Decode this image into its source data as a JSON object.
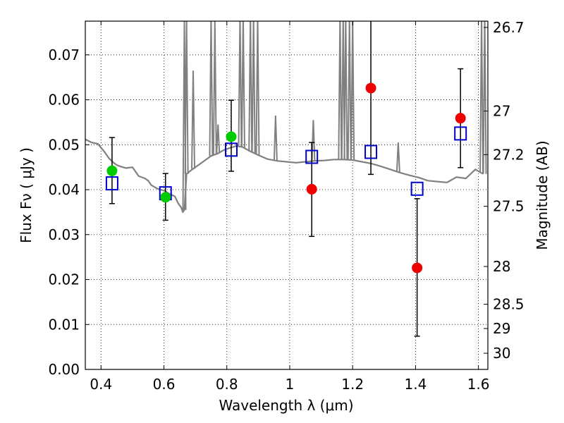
{
  "chart_data": {
    "type": "scatter",
    "title": "",
    "xlabel": "Wavelength  λ (μm)",
    "ylabel": "Flux  Fν  ( μJy )",
    "y2label": "Magnitude (AB)",
    "xlim": [
      0.35,
      1.63
    ],
    "ylim": [
      0.0,
      0.0775
    ],
    "grid": true,
    "x_ticks": [
      {
        "value": 0.4,
        "label": "0.4"
      },
      {
        "value": 0.6,
        "label": "0.6"
      },
      {
        "value": 0.8,
        "label": "0.8"
      },
      {
        "value": 1.0,
        "label": "1"
      },
      {
        "value": 1.2,
        "label": "1.2"
      },
      {
        "value": 1.4,
        "label": "1.4"
      },
      {
        "value": 1.6,
        "label": "1.6"
      }
    ],
    "y_ticks": [
      {
        "value": 0.0,
        "label": "0.00"
      },
      {
        "value": 0.01,
        "label": "0.01"
      },
      {
        "value": 0.02,
        "label": "0.02"
      },
      {
        "value": 0.03,
        "label": "0.03"
      },
      {
        "value": 0.04,
        "label": "0.04"
      },
      {
        "value": 0.05,
        "label": "0.05"
      },
      {
        "value": 0.06,
        "label": "0.06"
      },
      {
        "value": 0.07,
        "label": "0.07"
      }
    ],
    "y2_ticks": [
      {
        "flux": 0.0761,
        "label": "26.7"
      },
      {
        "flux": 0.0575,
        "label": "27"
      },
      {
        "flux": 0.0478,
        "label": "27.2"
      },
      {
        "flux": 0.0363,
        "label": "27.5"
      },
      {
        "flux": 0.0229,
        "label": "28"
      },
      {
        "flux": 0.0145,
        "label": "28.5"
      },
      {
        "flux": 0.0091,
        "label": "29"
      },
      {
        "flux": 0.0036,
        "label": "30"
      }
    ],
    "model_spectrum": {
      "color": "#808080",
      "x": [
        0.35,
        0.37,
        0.39,
        0.41,
        0.425,
        0.44,
        0.45,
        0.46,
        0.48,
        0.5,
        0.52,
        0.54,
        0.55,
        0.56,
        0.58,
        0.6,
        0.62,
        0.635,
        0.645,
        0.655,
        0.66,
        0.665,
        0.672,
        0.69,
        0.71,
        0.73,
        0.75,
        0.77,
        0.79,
        0.81,
        0.83,
        0.85,
        0.87,
        0.9,
        0.93,
        0.96,
        0.99,
        1.02,
        1.05,
        1.08,
        1.11,
        1.14,
        1.17,
        1.2,
        1.23,
        1.26,
        1.29,
        1.32,
        1.35,
        1.38,
        1.41,
        1.44,
        1.47,
        1.5,
        1.53,
        1.56,
        1.59,
        1.615
      ],
      "y": [
        0.0512,
        0.0505,
        0.0502,
        0.0485,
        0.047,
        0.046,
        0.0455,
        0.0452,
        0.0448,
        0.045,
        0.043,
        0.0425,
        0.042,
        0.041,
        0.0402,
        0.0398,
        0.039,
        0.0385,
        0.037,
        0.036,
        0.035,
        0.0355,
        0.0435,
        0.0445,
        0.0455,
        0.0465,
        0.0475,
        0.048,
        0.0488,
        0.0493,
        0.0497,
        0.0495,
        0.0487,
        0.0477,
        0.0468,
        0.0464,
        0.0462,
        0.046,
        0.0462,
        0.0464,
        0.0465,
        0.0467,
        0.0467,
        0.0466,
        0.0462,
        0.0458,
        0.0452,
        0.0445,
        0.0438,
        0.0432,
        0.0427,
        0.042,
        0.0418,
        0.0416,
        0.0428,
        0.0425,
        0.0445,
        0.0435
      ]
    },
    "spikes": [
      {
        "x": 0.665,
        "peak": 0.0775
      },
      {
        "x": 0.672,
        "peak": 0.0775
      },
      {
        "x": 0.693,
        "peak": 0.0665
      },
      {
        "x": 0.75,
        "peak": 0.0785
      },
      {
        "x": 0.762,
        "peak": 0.0775
      },
      {
        "x": 0.772,
        "peak": 0.0545
      },
      {
        "x": 0.842,
        "peak": 0.0785
      },
      {
        "x": 0.852,
        "peak": 0.0785
      },
      {
        "x": 0.875,
        "peak": 0.0785
      },
      {
        "x": 0.885,
        "peak": 0.0785
      },
      {
        "x": 0.898,
        "peak": 0.0785
      },
      {
        "x": 0.955,
        "peak": 0.0565
      },
      {
        "x": 1.075,
        "peak": 0.0555
      },
      {
        "x": 1.16,
        "peak": 0.0785
      },
      {
        "x": 1.17,
        "peak": 0.0785
      },
      {
        "x": 1.178,
        "peak": 0.0785
      },
      {
        "x": 1.19,
        "peak": 0.0785
      },
      {
        "x": 1.2,
        "peak": 0.0785
      },
      {
        "x": 1.345,
        "peak": 0.0505
      },
      {
        "x": 1.61,
        "peak": 0.0785
      },
      {
        "x": 1.62,
        "peak": 0.0785
      }
    ],
    "series": [
      {
        "marker": "square",
        "color": "#0000cc",
        "points": [
          {
            "x": 0.435,
            "y": 0.0414
          },
          {
            "x": 0.605,
            "y": 0.0392
          },
          {
            "x": 0.814,
            "y": 0.0489
          },
          {
            "x": 1.07,
            "y": 0.0473
          },
          {
            "x": 1.258,
            "y": 0.0484
          },
          {
            "x": 1.405,
            "y": 0.0402
          },
          {
            "x": 1.543,
            "y": 0.0525
          }
        ]
      },
      {
        "marker": "circle",
        "color": "#00cc00",
        "points": [
          {
            "x": 0.435,
            "y": 0.0442
          },
          {
            "x": 0.605,
            "y": 0.0383
          },
          {
            "x": 0.814,
            "y": 0.0518
          }
        ]
      },
      {
        "marker": "circle",
        "color": "#ee0000",
        "points": [
          {
            "x": 1.07,
            "y": 0.0401
          },
          {
            "x": 1.258,
            "y": 0.0626
          },
          {
            "x": 1.405,
            "y": 0.0226
          },
          {
            "x": 1.543,
            "y": 0.0559
          }
        ]
      }
    ],
    "errorbars": [
      {
        "x": 0.435,
        "low": 0.0369,
        "high": 0.0516
      },
      {
        "x": 0.605,
        "low": 0.0332,
        "high": 0.0436
      },
      {
        "x": 0.814,
        "low": 0.0441,
        "high": 0.0599
      },
      {
        "x": 1.07,
        "low": 0.0296,
        "high": 0.0505
      },
      {
        "x": 1.258,
        "low": 0.0434,
        "high": 0.0785
      },
      {
        "x": 1.405,
        "low": 0.0074,
        "high": 0.038
      },
      {
        "x": 1.543,
        "low": 0.0449,
        "high": 0.0669
      }
    ]
  }
}
